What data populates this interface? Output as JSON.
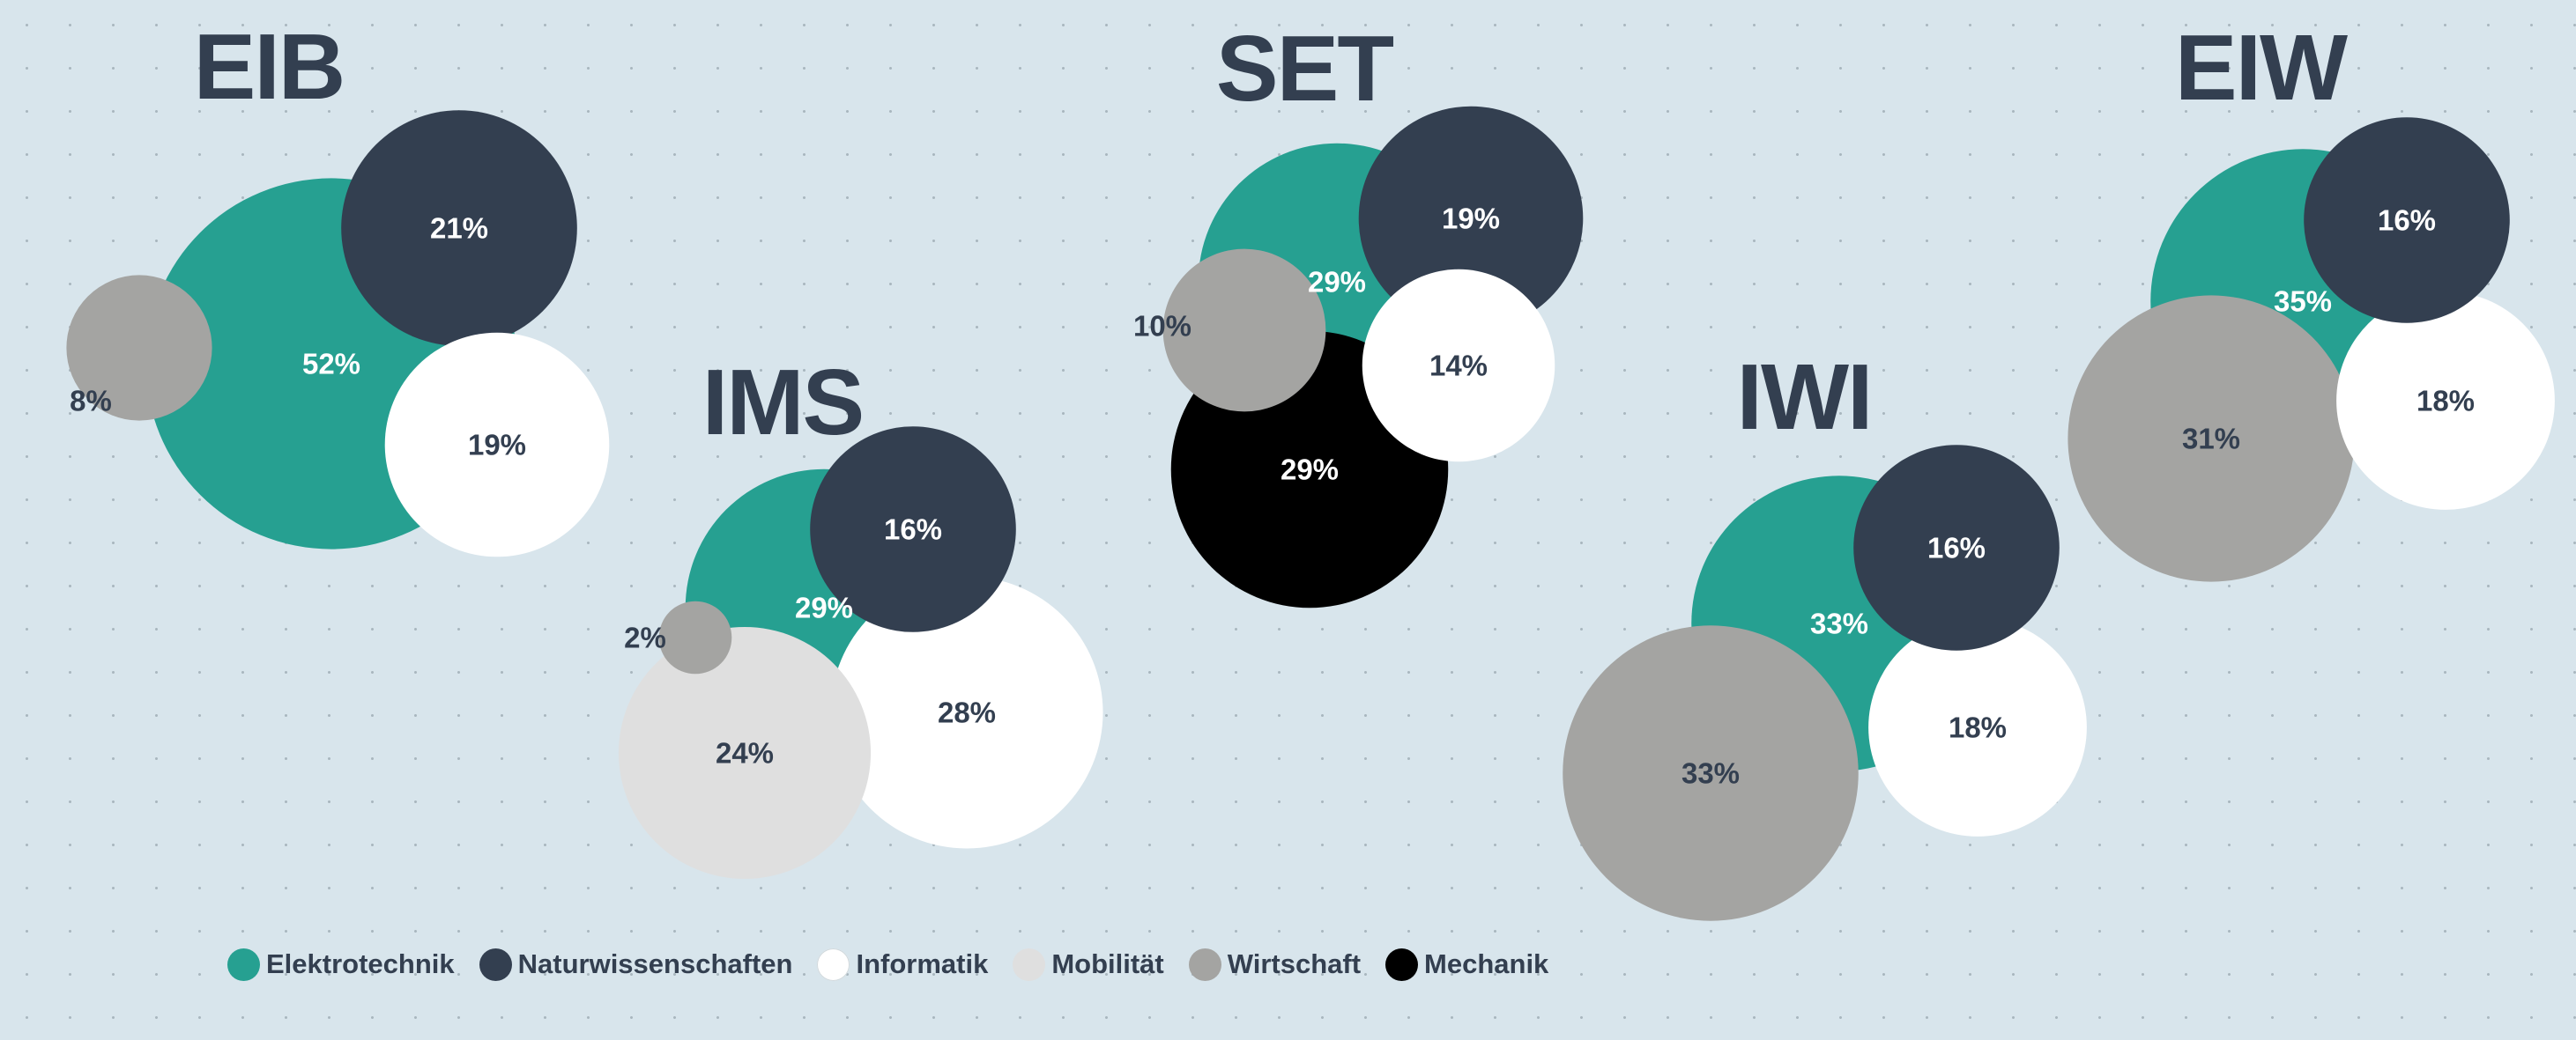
{
  "chart_data": {
    "type": "bubble",
    "categories": [
      "Elektrotechnik",
      "Naturwissenschaften",
      "Informatik",
      "Mobilität",
      "Wirtschaft",
      "Mechanik"
    ],
    "colors": {
      "Elektrotechnik": "#26a091",
      "Naturwissenschaften": "#333f50",
      "Informatik": "#ffffff",
      "Mobilität": "#dfdfdf",
      "Wirtschaft": "#a4a4a2",
      "Mechanik": "#000000"
    },
    "groups": [
      {
        "name": "EIB",
        "values": [
          {
            "category": "Elektrotechnik",
            "value": 52,
            "label": "52%"
          },
          {
            "category": "Naturwissenschaften",
            "value": 21,
            "label": "21%"
          },
          {
            "category": "Informatik",
            "value": 19,
            "label": "19%"
          },
          {
            "category": "Wirtschaft",
            "value": 8,
            "label": "8%"
          }
        ]
      },
      {
        "name": "IMS",
        "values": [
          {
            "category": "Elektrotechnik",
            "value": 29,
            "label": "29%"
          },
          {
            "category": "Naturwissenschaften",
            "value": 16,
            "label": "16%"
          },
          {
            "category": "Informatik",
            "value": 28,
            "label": "28%"
          },
          {
            "category": "Mobilität",
            "value": 24,
            "label": "24%"
          },
          {
            "category": "Wirtschaft",
            "value": 2,
            "label": "2%"
          }
        ]
      },
      {
        "name": "SET",
        "values": [
          {
            "category": "Elektrotechnik",
            "value": 29,
            "label": "29%"
          },
          {
            "category": "Naturwissenschaften",
            "value": 19,
            "label": "19%"
          },
          {
            "category": "Informatik",
            "value": 14,
            "label": "14%"
          },
          {
            "category": "Wirtschaft",
            "value": 10,
            "label": "10%"
          },
          {
            "category": "Mechanik",
            "value": 29,
            "label": "29%"
          }
        ]
      },
      {
        "name": "IWI",
        "values": [
          {
            "category": "Elektrotechnik",
            "value": 33,
            "label": "33%"
          },
          {
            "category": "Naturwissenschaften",
            "value": 16,
            "label": "16%"
          },
          {
            "category": "Informatik",
            "value": 18,
            "label": "18%"
          },
          {
            "category": "Wirtschaft",
            "value": 33,
            "label": "33%"
          }
        ]
      },
      {
        "name": "EIW",
        "values": [
          {
            "category": "Elektrotechnik",
            "value": 35,
            "label": "35%"
          },
          {
            "category": "Naturwissenschaften",
            "value": 16,
            "label": "16%"
          },
          {
            "category": "Informatik",
            "value": 18,
            "label": "18%"
          },
          {
            "category": "Wirtschaft",
            "value": 31,
            "label": "31%"
          }
        ]
      }
    ]
  },
  "legend": {
    "items": [
      {
        "label": "Elektrotechnik",
        "color": "#26a091"
      },
      {
        "label": "Naturwissenschaften",
        "color": "#333f50"
      },
      {
        "label": "Informatik",
        "color": "#ffffff"
      },
      {
        "label": "Mobilität",
        "color": "#dfdfdf"
      },
      {
        "label": "Wirtschaft",
        "color": "#a4a4a2"
      },
      {
        "label": "Mechanik",
        "color": "#000000"
      }
    ]
  }
}
